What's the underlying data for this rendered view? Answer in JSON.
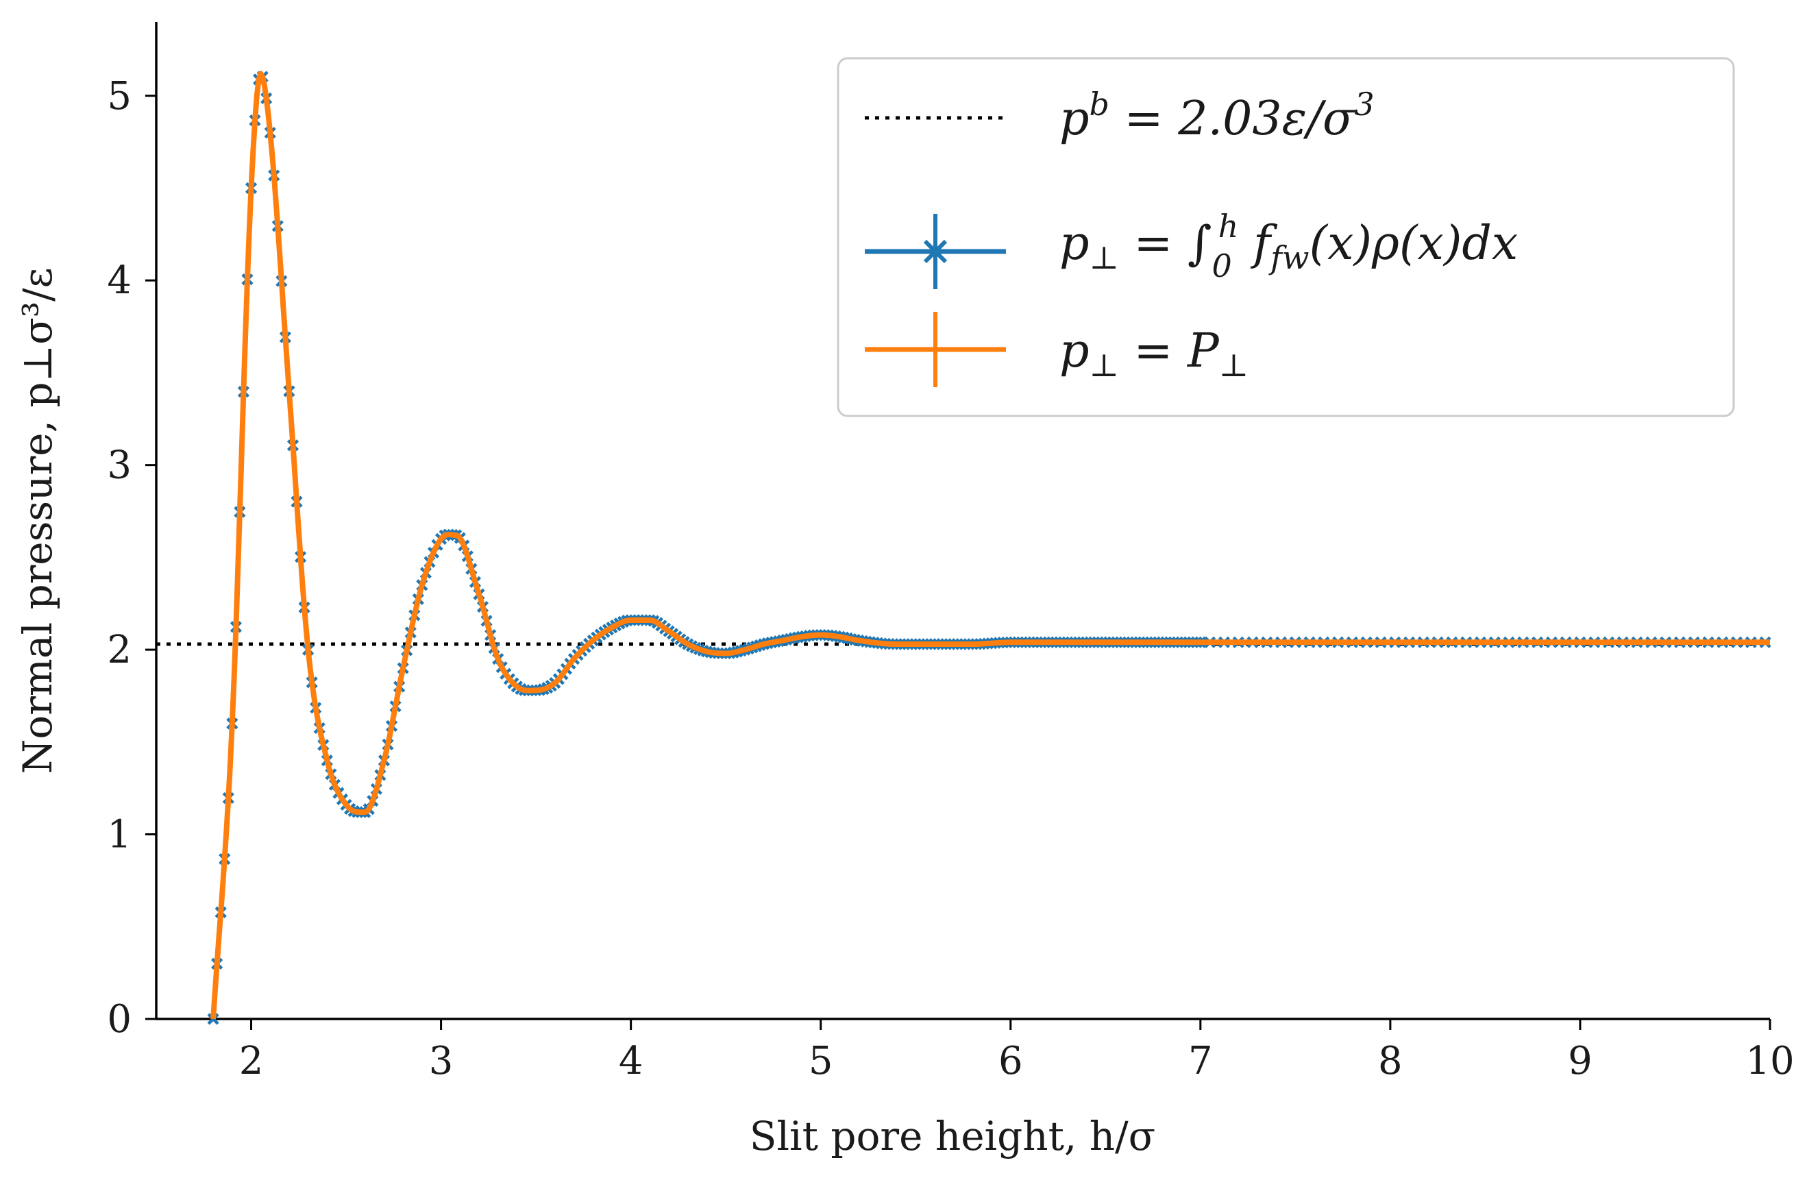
{
  "chart_data": {
    "type": "line",
    "title": "",
    "xlabel": "Slit pore height, h/σ",
    "ylabel": "Normal pressure, p⊥σ³/ε",
    "xlim": [
      1.5,
      10
    ],
    "ylim": [
      0,
      5.4
    ],
    "xticks": [
      2,
      3,
      4,
      5,
      6,
      7,
      8,
      9,
      10
    ],
    "yticks": [
      0,
      1,
      2,
      3,
      4,
      5
    ],
    "grid": false,
    "legend_position": "top-right",
    "reference_line": {
      "name": "p^b = 2.03ε/σ³",
      "value": 2.03,
      "style": "dotted",
      "color": "#000000"
    },
    "series": [
      {
        "name": "p⊥ = ∫₀ʰ f_fw(x)ρ(x)dx",
        "color": "#1f77b4",
        "marker": "x",
        "x": [
          1.8,
          1.9,
          2.0,
          2.05,
          2.1,
          2.2,
          2.3,
          2.4,
          2.5,
          2.6,
          2.7,
          2.8,
          2.9,
          3.0,
          3.08,
          3.2,
          3.3,
          3.4,
          3.5,
          3.6,
          3.7,
          3.8,
          3.9,
          4.0,
          4.1,
          4.2,
          4.3,
          4.4,
          4.5,
          4.6,
          4.7,
          4.8,
          4.9,
          5.0,
          5.1,
          5.2,
          5.4,
          5.6,
          5.8,
          6.0,
          6.2,
          6.5,
          7.0,
          7.5,
          8.0,
          8.5,
          9.0,
          9.5,
          10.0
        ],
        "y": [
          0.0,
          1.6,
          4.5,
          5.12,
          4.8,
          3.4,
          2.0,
          1.4,
          1.16,
          1.12,
          1.4,
          1.9,
          2.35,
          2.6,
          2.62,
          2.3,
          1.95,
          1.8,
          1.78,
          1.82,
          1.95,
          2.05,
          2.12,
          2.16,
          2.16,
          2.1,
          2.03,
          1.99,
          1.98,
          2.0,
          2.03,
          2.05,
          2.07,
          2.08,
          2.07,
          2.05,
          2.03,
          2.03,
          2.03,
          2.04,
          2.04,
          2.04,
          2.04,
          2.04,
          2.04,
          2.04,
          2.04,
          2.04,
          2.04
        ]
      },
      {
        "name": "p⊥ = P⊥",
        "color": "#ff7f0e",
        "marker": "none",
        "x": [
          1.8,
          1.9,
          2.0,
          2.05,
          2.1,
          2.2,
          2.3,
          2.4,
          2.5,
          2.6,
          2.7,
          2.8,
          2.9,
          3.0,
          3.08,
          3.2,
          3.3,
          3.4,
          3.5,
          3.6,
          3.7,
          3.8,
          3.9,
          4.0,
          4.1,
          4.2,
          4.3,
          4.4,
          4.5,
          4.6,
          4.7,
          4.8,
          4.9,
          5.0,
          5.1,
          5.2,
          5.4,
          5.6,
          5.8,
          6.0,
          6.2,
          6.5,
          7.0,
          7.5,
          8.0,
          8.5,
          9.0,
          9.5,
          10.0
        ],
        "y": [
          0.0,
          1.6,
          4.5,
          5.12,
          4.8,
          3.4,
          2.0,
          1.4,
          1.16,
          1.12,
          1.4,
          1.9,
          2.35,
          2.6,
          2.62,
          2.3,
          1.95,
          1.8,
          1.78,
          1.82,
          1.95,
          2.05,
          2.12,
          2.16,
          2.16,
          2.1,
          2.03,
          1.99,
          1.98,
          2.0,
          2.03,
          2.05,
          2.07,
          2.08,
          2.07,
          2.05,
          2.03,
          2.03,
          2.03,
          2.04,
          2.04,
          2.04,
          2.04,
          2.04,
          2.04,
          2.04,
          2.04,
          2.04,
          2.04
        ]
      }
    ],
    "legend": [
      {
        "label_base": "p",
        "label_sup": "b",
        "label_rest": " = 2.03ε/σ",
        "label_sup2": "3"
      },
      {
        "label_base": "p",
        "label_sub": "⊥",
        "label_rest": " = ∫",
        "label_int_sub": "0",
        "label_int_sup": "h",
        "label_rest2": " f",
        "label_sub2": "fw",
        "label_rest3": "(x)ρ(x)dx"
      },
      {
        "label_base": "p",
        "label_sub": "⊥",
        "label_rest": " = P",
        "label_sub2": "⊥"
      }
    ]
  }
}
